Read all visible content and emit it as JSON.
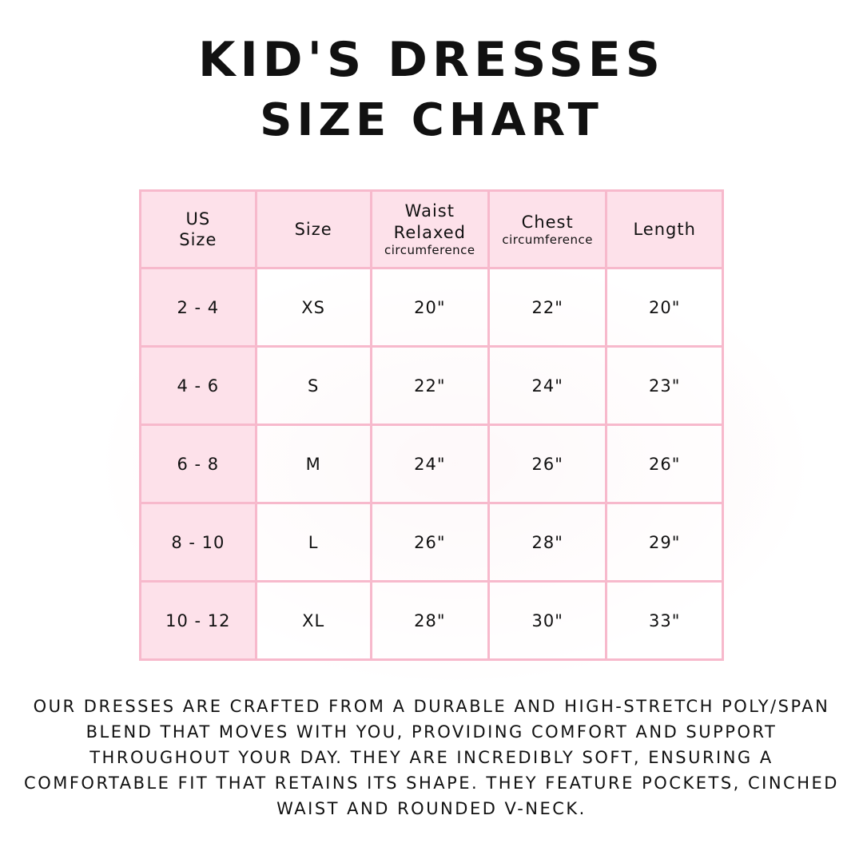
{
  "title": {
    "line1": "Kid's Dresses",
    "line2": "Size Chart"
  },
  "table": {
    "headers": [
      {
        "main": "US Size",
        "sub": ""
      },
      {
        "main": "Size",
        "sub": ""
      },
      {
        "main": "Waist Relaxed",
        "sub": "circumference"
      },
      {
        "main": "Chest",
        "sub": "circumference"
      },
      {
        "main": "Length",
        "sub": ""
      }
    ],
    "rows": [
      [
        "2 - 4",
        "XS",
        "20\"",
        "22\"",
        "20\""
      ],
      [
        "4 - 6",
        "S",
        "22\"",
        "24\"",
        "23\""
      ],
      [
        "6 - 8",
        "M",
        "24\"",
        "26\"",
        "26\""
      ],
      [
        "8 - 10",
        "L",
        "26\"",
        "28\"",
        "29\""
      ],
      [
        "10 - 12",
        "XL",
        "28\"",
        "30\"",
        "33\""
      ]
    ]
  },
  "description": "Our dresses are crafted from a durable and high-stretch poly/span blend that moves with you, providing comfort and support throughout your day. They are incredibly soft, ensuring a comfortable fit that retains its shape. They feature pockets, cinched waist and rounded V-neck.",
  "colors": {
    "header_bg": "#fde1ea",
    "border": "#f7b9cc"
  }
}
